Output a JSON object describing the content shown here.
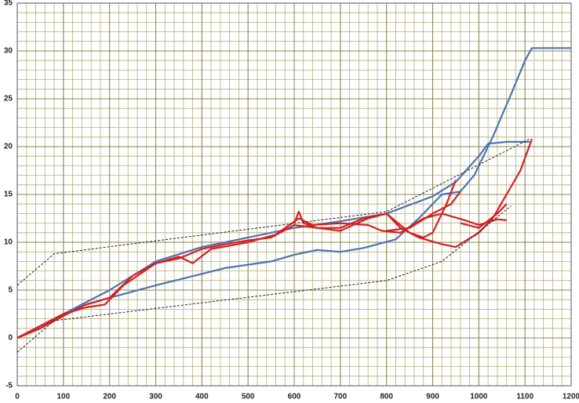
{
  "chart_data": {
    "type": "line",
    "xlim": [
      0,
      1200
    ],
    "xticks": [
      0,
      100,
      200,
      300,
      400,
      500,
      600,
      700,
      800,
      900,
      1000,
      1100,
      1200
    ],
    "ylim": [
      -5,
      35
    ],
    "yticks": [
      -5,
      0,
      5,
      10,
      15,
      20,
      25,
      30,
      35
    ],
    "grid": true,
    "minor_grid": {
      "x": 20,
      "y": 1
    },
    "grid_color": "#b5ae7a",
    "background": "#ffffff",
    "series": [
      {
        "color": "#4a74b0",
        "style": "solid",
        "x": [
          0,
          50,
          100,
          150,
          200,
          300,
          400,
          450,
          550,
          600,
          650,
          700,
          750,
          820,
          870,
          920,
          960,
          990,
          1030,
          1070,
          1100,
          1115,
          1200
        ],
        "values": [
          0,
          1,
          2.5,
          3.5,
          4.2,
          5.5,
          6.7,
          7.3,
          8,
          8.7,
          9.2,
          9,
          9.4,
          10.3,
          12.5,
          15,
          15.3,
          17,
          21,
          25.5,
          29,
          30.3,
          30.3
        ]
      },
      {
        "color": "#4a74b0",
        "style": "solid",
        "x": [
          0,
          100,
          200,
          300,
          400,
          500,
          600,
          700,
          800,
          900,
          950,
          1000,
          1020,
          1060,
          1110
        ],
        "values": [
          0,
          2.5,
          5,
          8,
          9.5,
          10.5,
          11.5,
          12.2,
          13,
          14.8,
          16.3,
          19,
          20.3,
          20.5,
          20.5
        ]
      },
      {
        "color": "#d42020",
        "style": "solid",
        "x": [
          0,
          50,
          100,
          150,
          200,
          250,
          300,
          350,
          400,
          450,
          500,
          550,
          600,
          650,
          700,
          750,
          800,
          830,
          870,
          920,
          950,
          1000,
          1030,
          1060,
          1090,
          1115
        ],
        "values": [
          0,
          1,
          2.3,
          3.5,
          4.2,
          6.5,
          7.8,
          8.3,
          9.3,
          9.8,
          10.2,
          10.5,
          11.8,
          11.5,
          11.5,
          12.5,
          13,
          11.5,
          10.5,
          9.8,
          9.5,
          11,
          12.5,
          15,
          17.5,
          20.8
        ]
      },
      {
        "color": "#d42020",
        "style": "solid",
        "x": [
          0,
          100,
          150,
          190,
          230,
          300,
          350,
          380,
          420,
          500,
          560,
          610,
          640,
          700,
          760,
          790,
          830,
          880,
          920,
          970,
          1000,
          1040,
          1060
        ],
        "values": [
          0,
          2.5,
          3.2,
          3.5,
          5.5,
          7.8,
          8.5,
          7.8,
          9.3,
          10,
          10.8,
          12.5,
          11.8,
          12,
          11.8,
          11.2,
          11,
          12.5,
          13,
          12.3,
          11.8,
          12.4,
          12.3
        ]
      },
      {
        "color": "#d42020",
        "style": "solid",
        "x": [
          600,
          610,
          620,
          650,
          700,
          760,
          800,
          850,
          880,
          900,
          930,
          950
        ],
        "values": [
          12,
          13.2,
          12,
          11.5,
          11.2,
          12.5,
          13,
          11,
          10.5,
          11,
          14,
          16.5
        ]
      },
      {
        "color": "#d42020",
        "style": "solid",
        "x": [
          800,
          850,
          900,
          940,
          960
        ],
        "values": [
          11.2,
          11.5,
          13,
          14,
          15.3
        ]
      },
      {
        "color": "#d42020",
        "style": "solid",
        "x": [
          960,
          1000,
          1040,
          1060
        ],
        "values": [
          12,
          11.5,
          13,
          14
        ]
      },
      {
        "color": "#222222",
        "style": "dashed",
        "x": [
          0,
          80,
          800,
          1110
        ],
        "values": [
          5.5,
          8.8,
          13.2,
          20.8
        ]
      },
      {
        "color": "#222222",
        "style": "dashed",
        "x": [
          0,
          80,
          800,
          920,
          1070
        ],
        "values": [
          -1.5,
          1.8,
          6,
          8,
          13.8
        ]
      }
    ]
  }
}
